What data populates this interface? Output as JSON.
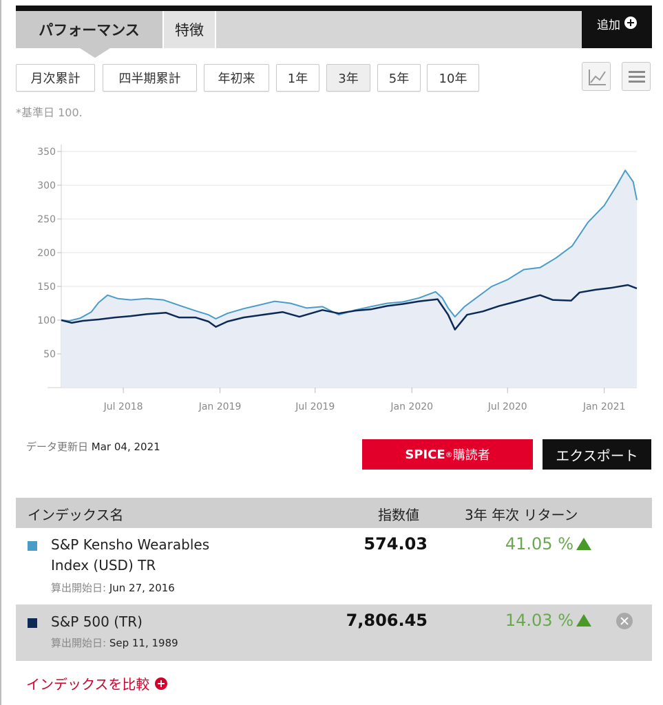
{
  "tabs": {
    "performance": "パフォーマンス",
    "features": "特徴",
    "add": "追加"
  },
  "periods": [
    "月次累計",
    "四半期累計",
    "年初来",
    "1年",
    "3年",
    "5年",
    "10年"
  ],
  "active_period": "3年",
  "view_icons": [
    "line-chart-icon",
    "menu-icon"
  ],
  "base_note": "*基準日 100.",
  "chart_data": {
    "type": "line",
    "x_ticks": [
      "Jul 2018",
      "Jan 2019",
      "Jul 2019",
      "Jan 2020",
      "Jul 2020",
      "Jan 2021"
    ],
    "y_ticks": [
      50,
      100,
      150,
      200,
      250,
      300,
      350
    ],
    "ylim": [
      0,
      350
    ],
    "xlim": [
      "2018-03-05",
      "2021-03-04"
    ],
    "series": [
      {
        "name": "S&P Kensho Wearables Index (USD) TR",
        "color": "#4a9cc8",
        "points": [
          [
            "2018-03-05",
            100
          ],
          [
            "2018-03-20",
            99
          ],
          [
            "2018-04-10",
            103
          ],
          [
            "2018-05-01",
            112
          ],
          [
            "2018-05-15",
            126
          ],
          [
            "2018-06-01",
            137
          ],
          [
            "2018-06-20",
            132
          ],
          [
            "2018-07-15",
            130
          ],
          [
            "2018-08-15",
            132
          ],
          [
            "2018-09-15",
            130
          ],
          [
            "2018-10-15",
            122
          ],
          [
            "2018-11-15",
            114
          ],
          [
            "2018-12-10",
            108
          ],
          [
            "2018-12-24",
            102
          ],
          [
            "2019-01-15",
            110
          ],
          [
            "2019-02-15",
            117
          ],
          [
            "2019-03-15",
            122
          ],
          [
            "2019-04-15",
            128
          ],
          [
            "2019-05-15",
            125
          ],
          [
            "2019-06-15",
            118
          ],
          [
            "2019-07-15",
            120
          ],
          [
            "2019-08-15",
            108
          ],
          [
            "2019-09-15",
            115
          ],
          [
            "2019-10-15",
            120
          ],
          [
            "2019-11-15",
            125
          ],
          [
            "2019-12-15",
            127
          ],
          [
            "2020-01-15",
            133
          ],
          [
            "2020-02-15",
            142
          ],
          [
            "2020-02-28",
            133
          ],
          [
            "2020-03-10",
            118
          ],
          [
            "2020-03-23",
            105
          ],
          [
            "2020-04-10",
            120
          ],
          [
            "2020-05-01",
            132
          ],
          [
            "2020-06-01",
            150
          ],
          [
            "2020-07-01",
            160
          ],
          [
            "2020-08-01",
            175
          ],
          [
            "2020-09-01",
            178
          ],
          [
            "2020-10-01",
            192
          ],
          [
            "2020-11-01",
            210
          ],
          [
            "2020-12-01",
            245
          ],
          [
            "2021-01-01",
            270
          ],
          [
            "2021-01-25",
            300
          ],
          [
            "2021-02-10",
            322
          ],
          [
            "2021-02-25",
            305
          ],
          [
            "2021-03-04",
            278
          ]
        ]
      },
      {
        "name": "S&P 500 (TR)",
        "color": "#0b2a55",
        "points": [
          [
            "2018-03-05",
            100
          ],
          [
            "2018-03-25",
            96
          ],
          [
            "2018-04-15",
            99
          ],
          [
            "2018-05-15",
            101
          ],
          [
            "2018-06-15",
            104
          ],
          [
            "2018-07-15",
            106
          ],
          [
            "2018-08-15",
            109
          ],
          [
            "2018-09-20",
            111
          ],
          [
            "2018-10-15",
            104
          ],
          [
            "2018-11-15",
            104
          ],
          [
            "2018-12-10",
            98
          ],
          [
            "2018-12-24",
            90
          ],
          [
            "2019-01-15",
            98
          ],
          [
            "2019-02-15",
            104
          ],
          [
            "2019-03-15",
            107
          ],
          [
            "2019-04-30",
            112
          ],
          [
            "2019-06-01",
            105
          ],
          [
            "2019-07-15",
            115
          ],
          [
            "2019-08-15",
            110
          ],
          [
            "2019-09-15",
            114
          ],
          [
            "2019-10-15",
            116
          ],
          [
            "2019-11-15",
            121
          ],
          [
            "2019-12-15",
            124
          ],
          [
            "2020-01-15",
            128
          ],
          [
            "2020-02-19",
            131
          ],
          [
            "2020-03-10",
            108
          ],
          [
            "2020-03-23",
            86
          ],
          [
            "2020-04-15",
            108
          ],
          [
            "2020-05-15",
            113
          ],
          [
            "2020-06-15",
            121
          ],
          [
            "2020-07-15",
            127
          ],
          [
            "2020-09-01",
            137
          ],
          [
            "2020-09-25",
            130
          ],
          [
            "2020-10-30",
            129
          ],
          [
            "2020-11-15",
            141
          ],
          [
            "2020-12-15",
            145
          ],
          [
            "2021-01-15",
            148
          ],
          [
            "2021-02-15",
            152
          ],
          [
            "2021-03-04",
            147
          ]
        ]
      }
    ]
  },
  "data_update_label": "データ更新日",
  "data_update_date": "Mar 04, 2021",
  "spice_label": "SPICE",
  "spice_reg": "®",
  "spice_suffix": " 購読者",
  "export_label": "エクスポート",
  "table": {
    "col_name": "インデックス名",
    "col_value": "指数値",
    "col_return": "3年 年次 リターン",
    "inception_label": "算出開始日:",
    "rows": [
      {
        "name_line1": "S&P Kensho Wearables",
        "name_line2": "Index (USD) TR",
        "inception": "Jun 27, 2016",
        "value": "574.03",
        "return": "41.05 %",
        "color": "#4a9cc8"
      },
      {
        "name_line1": "S&P 500 (TR)",
        "inception": "Sep 11, 1989",
        "value": "7,806.45",
        "return": "14.03 %",
        "color": "#0b2a55"
      }
    ]
  },
  "compare_label": "インデックスを比較"
}
